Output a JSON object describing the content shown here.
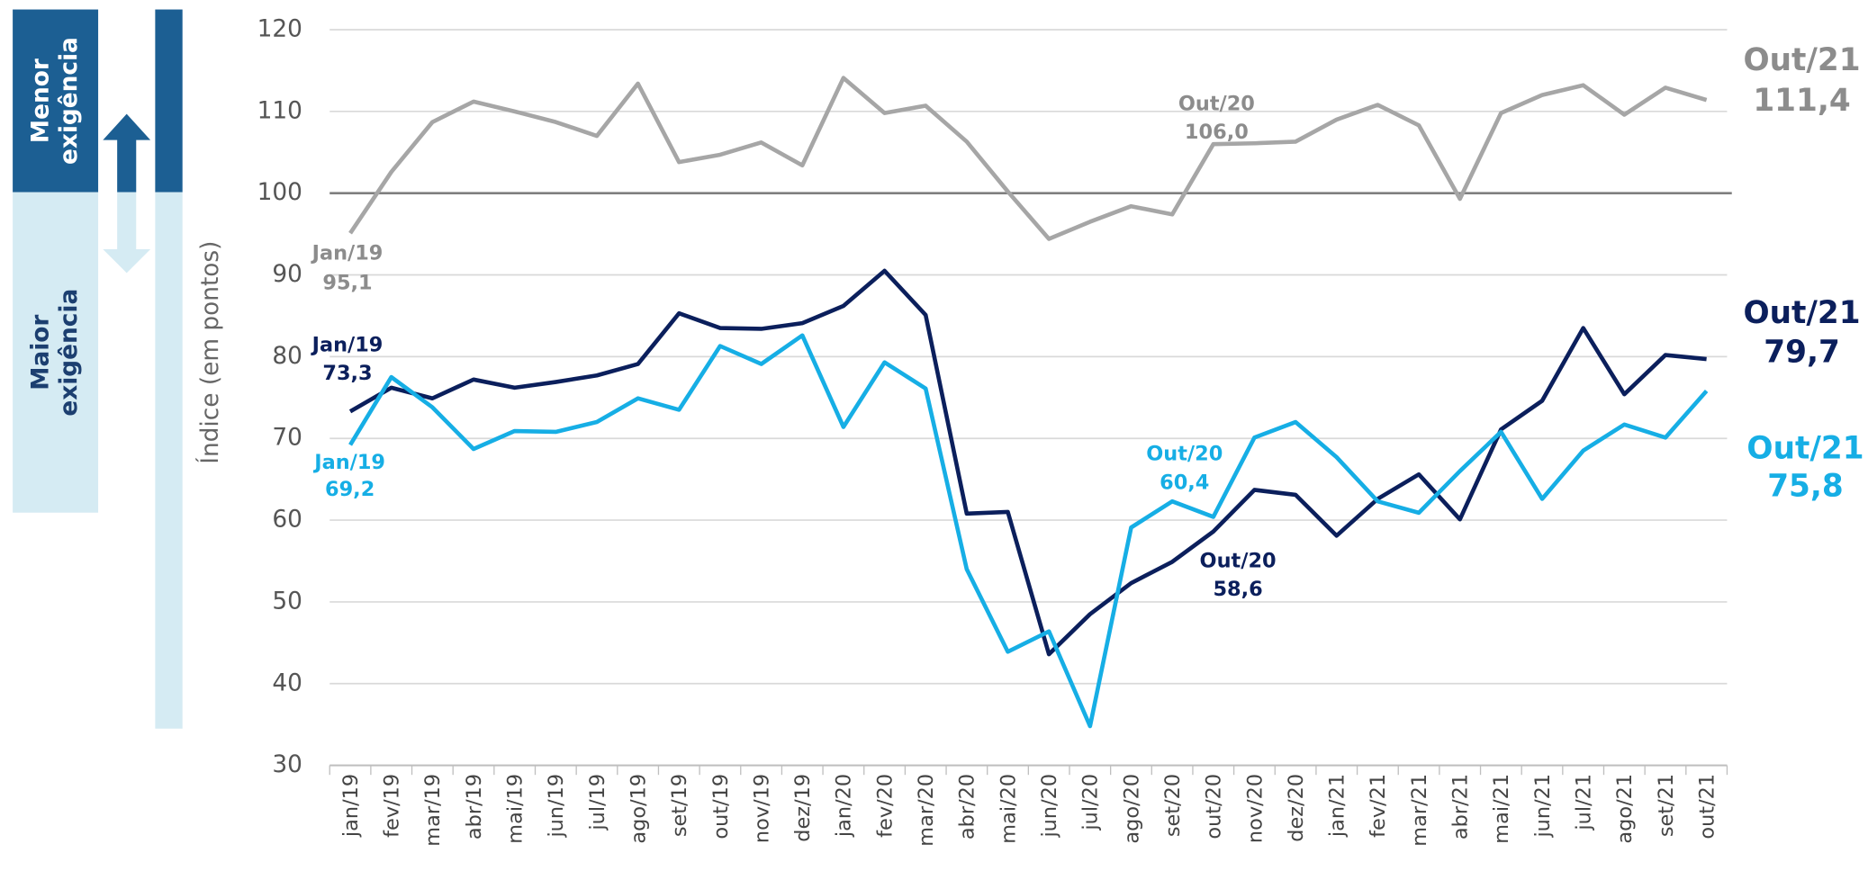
{
  "chart_data": {
    "type": "line",
    "y_label": "Índice (em pontos)",
    "side_labels": {
      "top": [
        "Menor",
        "exigência"
      ],
      "bottom": [
        "Maior",
        "exigência"
      ]
    },
    "categories": [
      "jan/19",
      "fev/19",
      "mar/19",
      "abr/19",
      "mai/19",
      "jun/19",
      "jul/19",
      "ago/19",
      "set/19",
      "out/19",
      "nov/19",
      "dez/19",
      "jan/20",
      "fev/20",
      "mar/20",
      "abr/20",
      "mai/20",
      "jun/20",
      "jul/20",
      "ago/20",
      "set/20",
      "out/20",
      "nov/20",
      "dez/20",
      "jan/21",
      "fev/21",
      "mar/21",
      "abr/21",
      "mai/21",
      "jun/21",
      "jul/21",
      "ago/21",
      "set/21",
      "out/21"
    ],
    "series": [
      {
        "color": "#a6a6a6",
        "values": [
          95.1,
          102.6,
          108.7,
          111.2,
          110,
          108.7,
          107,
          113.4,
          103.8,
          104.7,
          106.2,
          103.4,
          114.1,
          109.8,
          110.7,
          106.3,
          100.2,
          94.4,
          96.5,
          98.4,
          97.4,
          106.0,
          106.1,
          106.3,
          109,
          110.8,
          108.3,
          99.3,
          109.8,
          112,
          113.2,
          109.6,
          112.9,
          111.4
        ],
        "annotations": [
          {
            "text": [
              "Jan/19",
              "95,1"
            ]
          },
          {
            "text": [
              "Out/20",
              "106,0"
            ]
          },
          {
            "text": [
              "Out/21",
              "111,4"
            ]
          }
        ]
      },
      {
        "color": "#0b1f5c",
        "values": [
          73.3,
          76.2,
          74.9,
          77.2,
          76.2,
          76.9,
          77.7,
          79.1,
          85.3,
          83.5,
          83.4,
          84.1,
          86.2,
          90.5,
          85.1,
          60.8,
          61,
          43.6,
          48.5,
          52.3,
          54.9,
          58.6,
          63.7,
          63.1,
          58.1,
          62.6,
          65.6,
          60.1,
          71.1,
          74.6,
          83.5,
          75.4,
          80.2,
          79.7
        ],
        "annotations": [
          {
            "text": [
              "Jan/19",
              "73,3"
            ]
          },
          {
            "text": [
              "Out/20",
              "58,6"
            ]
          },
          {
            "text": [
              "Out/21",
              "79,7"
            ]
          }
        ]
      },
      {
        "color": "#16aee5",
        "values": [
          69.2,
          77.5,
          73.8,
          68.7,
          70.9,
          70.8,
          72,
          74.9,
          73.5,
          81.3,
          79.1,
          82.6,
          71.4,
          79.3,
          76.1,
          54,
          43.9,
          46.4,
          34.8,
          59.1,
          62.3,
          60.4,
          70.1,
          72,
          67.7,
          62.3,
          60.9,
          66,
          70.8,
          62.6,
          68.5,
          71.7,
          70.1,
          75.8
        ],
        "annotations": [
          {
            "text": [
              "Jan/19",
              "69,2"
            ]
          },
          {
            "text": [
              "Out/20",
              "60,4"
            ]
          },
          {
            "text": [
              "Out/21",
              "75,8"
            ]
          }
        ]
      }
    ],
    "reference_line": 100,
    "ylim": [
      30,
      120
    ],
    "yticks": [
      30,
      40,
      50,
      60,
      70,
      80,
      90,
      100,
      110,
      120
    ],
    "grid": true
  }
}
